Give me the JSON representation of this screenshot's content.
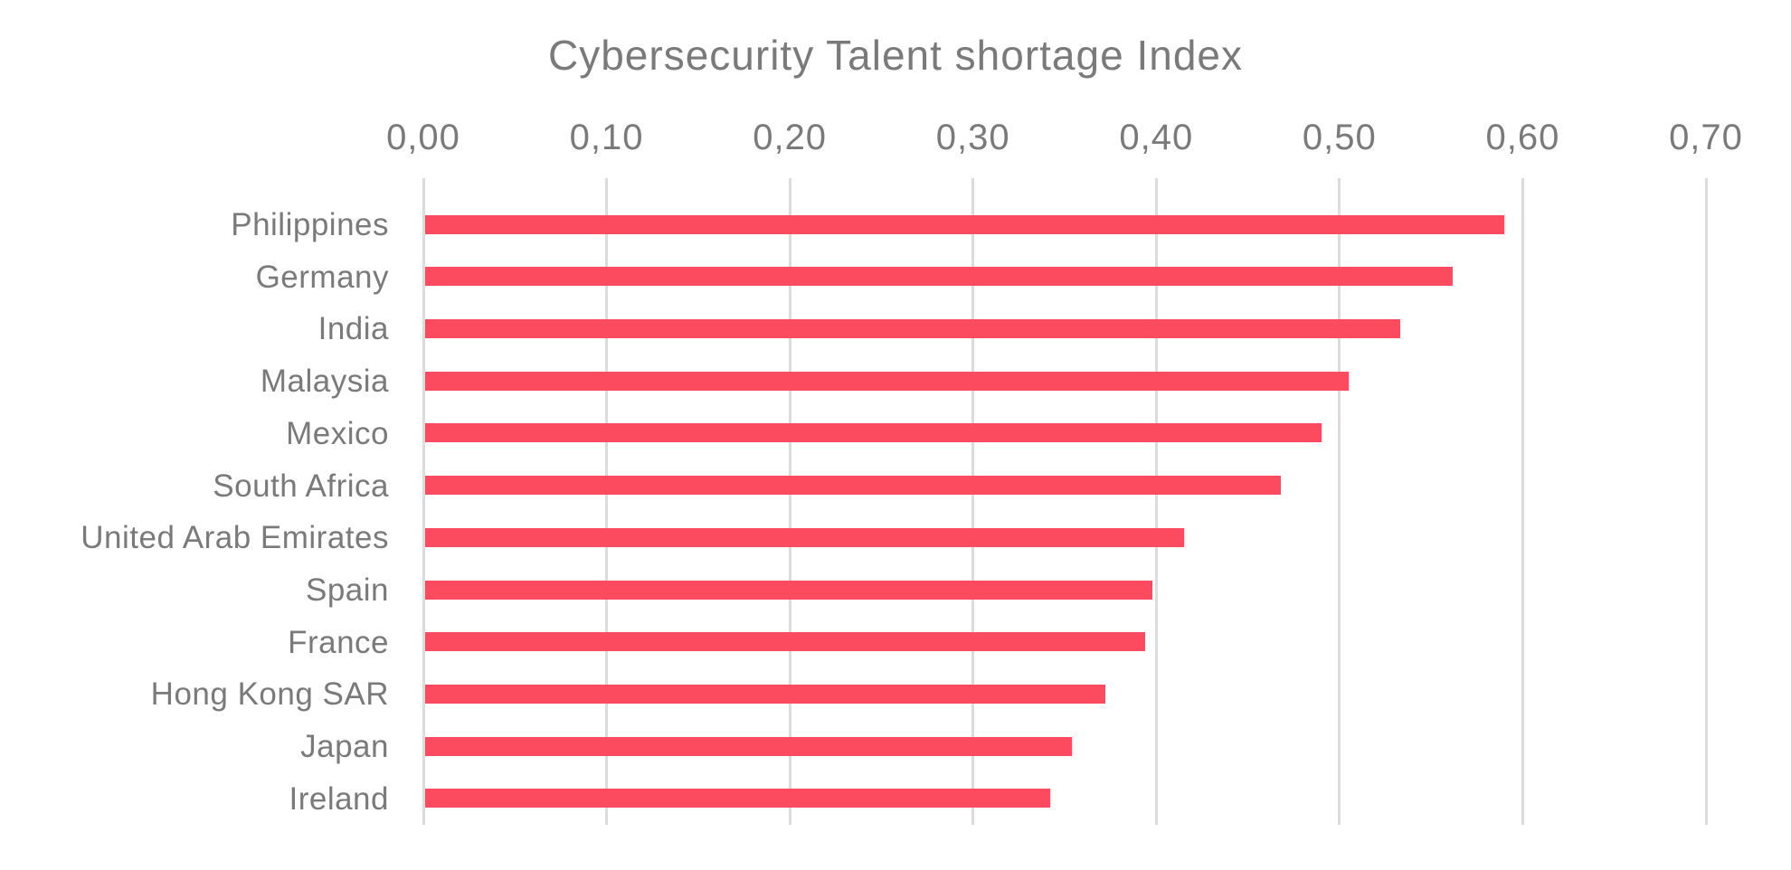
{
  "chart_data": {
    "type": "bar",
    "orientation": "horizontal",
    "title": "Cybersecurity Talent shortage Index",
    "categories": [
      "Philippines",
      "Germany",
      "India",
      "Malaysia",
      "Mexico",
      "South Africa",
      "United Arab Emirates",
      "Spain",
      "France",
      "Hong Kong SAR",
      "Japan",
      "Ireland"
    ],
    "values": [
      0.59,
      0.562,
      0.533,
      0.505,
      0.49,
      0.468,
      0.415,
      0.398,
      0.394,
      0.372,
      0.354,
      0.342
    ],
    "x_ticks": {
      "labels": [
        "0,00",
        "0,10",
        "0,20",
        "0,30",
        "0,40",
        "0,50",
        "0,60",
        "0,70"
      ],
      "values": [
        0,
        0.1,
        0.2,
        0.3,
        0.4,
        0.5,
        0.6,
        0.7
      ]
    },
    "xlim": [
      0,
      0.7
    ],
    "xlabel": "",
    "ylabel": "",
    "grid": true,
    "legend": false,
    "decimal_separator": ",",
    "bar_color": "#FC4B5E",
    "gridline_color": "#DCDCDC",
    "text_color": "#7A7A7A"
  }
}
